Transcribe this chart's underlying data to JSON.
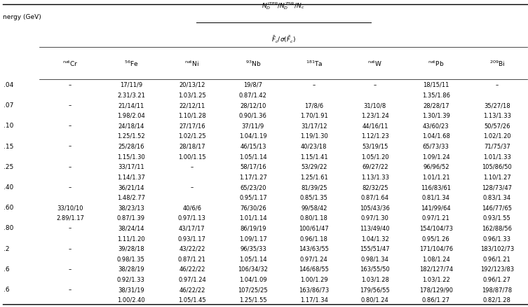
{
  "col_superscripts": [
    "nat",
    "56",
    "nat",
    "93",
    "181",
    "nat",
    "nat",
    "209"
  ],
  "col_elements": [
    "Cr",
    "Fe",
    "Ni",
    "Nb",
    "Ta",
    "W",
    "Pb",
    "Bi"
  ],
  "energy_label": "nergy (GeV)",
  "energies": [
    ".04",
    ".07",
    ".10",
    ".15",
    ".25",
    ".40",
    ".60",
    ".80",
    ".2",
    ".6",
    ".6"
  ],
  "rows": [
    [
      "–",
      "17/11/9\n2.31/3.21",
      "20/13/12\n1.03/1.25",
      "19/8/7\n0.87/1.42",
      "–\n–",
      "–\n–",
      "18/15/11\n1.35/1.86",
      "–\n–"
    ],
    [
      "–",
      "21/14/11\n1.98/2.04",
      "22/12/11\n1.10/1.28",
      "28/12/10\n0.90/1.36",
      "17/8/6\n1.70/1.91",
      "31/10/8\n1.23/1.24",
      "28/28/17\n1.30/1.39",
      "35/27/18\n1.13/1.33"
    ],
    [
      "–",
      "24/18/14\n1.25/1.52",
      "27/17/16\n1.02/1.25",
      "37/11/9\n1.04/1.19",
      "31/17/12\n1.19/1.30",
      "44/16/11\n1.12/1.23",
      "43/60/23\n1.04/1.68",
      "50/57/26\n1.02/1.20"
    ],
    [
      "–",
      "25/28/16\n1.15/1.30",
      "28/18/17\n1.00/1.15",
      "46/15/13\n1.05/1.14",
      "40/23/18\n1.15/1.41",
      "53/19/15\n1.05/1.20",
      "65/73/33\n1.09/1.24",
      "71/75/37\n1.01/1.33"
    ],
    [
      "–",
      "33/17/11\n1.14/1.37",
      "–\n–",
      "58/17/16\n1.17/1.27",
      "53/29/22\n1.25/1.61",
      "69/27/22\n1.13/1.33",
      "96/96/52\n1.01/1.21",
      "105/86/50\n1.10/1.27"
    ],
    [
      "–",
      "36/21/14\n1.48/2.77",
      "–\n–",
      "65/23/20\n0.95/1.17",
      "81/39/25\n0.85/1.35",
      "82/32/25\n0.87/1.64",
      "116/83/61\n0.81/1.34",
      "128/73/47\n0.83/1.34"
    ],
    [
      "33/10/10\n2.89/1.17",
      "38/23/13\n0.87/1.39",
      "40/6/6\n0.97/1.13",
      "76/30/26\n1.01/1.14",
      "99/58/42\n0.80/1.18",
      "105/43/36\n0.97/1.30",
      "141/99/64\n0.97/1.21",
      "146/77/65\n0.93/1.55"
    ],
    [
      "–",
      "38/24/14\n1.11/1.20",
      "43/17/17\n0.93/1.17",
      "86/19/19\n1.09/1.17",
      "100/61/47\n0.96/1.18",
      "113/49/40\n1.04/1.32",
      "154/104/73\n0.95/1.26",
      "162/88/56\n0.96/1.33"
    ],
    [
      "–",
      "39/28/18\n0.98/1.35",
      "43/22/22\n0.87/1.21",
      "96/35/33\n1.05/1.14",
      "143/63/55\n0.97/1.24",
      "155/51/47\n0.98/1.34",
      "171/104/76\n1.08/1.24",
      "183/102/73\n0.96/1.21"
    ],
    [
      "–",
      "38/28/19\n0.92/1.33",
      "46/22/22\n0.97/1.24",
      "106/34/32\n1.04/1.09",
      "146/68/55\n1.00/1.29",
      "163/55/50\n1.03/1.28",
      "182/127/74\n1.03/1.22",
      "192/123/83\n0.96/1.27"
    ],
    [
      "–",
      "38/31/19\n1.00/2.40",
      "46/22/22\n1.05/1.45",
      "107/25/25\n1.25/1.55",
      "163/86/73\n1.17/1.34",
      "179/56/55\n0.80/1.24",
      "178/129/90\n0.86/1.27",
      "198/87/78\n0.82/1.28"
    ]
  ],
  "fs_data": 6.0,
  "fs_header": 6.5,
  "fs_energy": 6.5,
  "fs_title": 6.5,
  "lw_thick": 1.0,
  "lw_thin": 0.5,
  "fig_width": 7.53,
  "fig_height": 4.39
}
